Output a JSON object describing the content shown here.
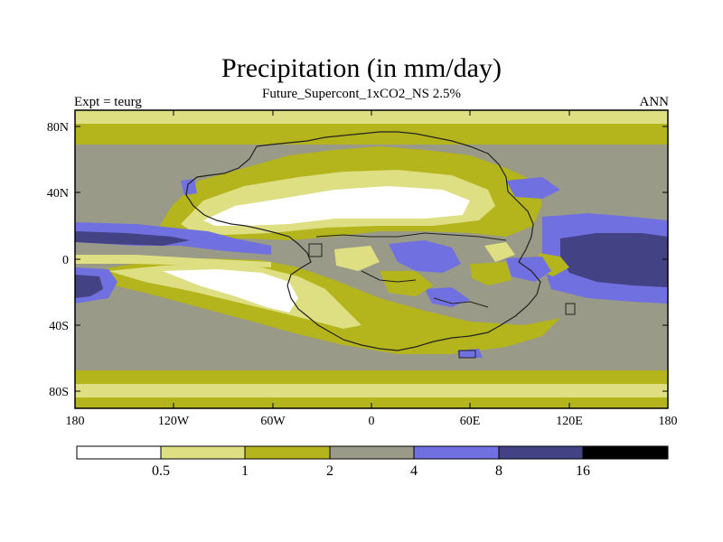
{
  "title": "Precipitation (in mm/day)",
  "subtitle": "Future_Supercont_1xCO2_NS 2.5%",
  "left_string": "Expt = teurg",
  "right_string": "ANN",
  "map": {
    "projection": "cylindrical equidistant",
    "lon_range": [
      -180,
      180
    ],
    "lat_range": [
      -90,
      90
    ],
    "lon_ticks": [
      "180",
      "120W",
      "60W",
      "0",
      "60E",
      "120E",
      "180"
    ],
    "lat_ticks": [
      "80N",
      "40N",
      "0",
      "40S",
      "80S"
    ],
    "colors": {
      "lt0_5": "#ffffff",
      "0_5to1": "#dede82",
      "1to2": "#b4b41c",
      "2to4": "#9a9a88",
      "4to8": "#7070e0",
      "8to16": "#424284",
      "gt16": "#000000"
    }
  },
  "colorbar": {
    "levels": [
      "0.5",
      "1",
      "2",
      "4",
      "8",
      "16"
    ],
    "colors": [
      "#ffffff",
      "#dede82",
      "#b4b41c",
      "#9a9a88",
      "#7070e0",
      "#424284",
      "#000000"
    ]
  }
}
